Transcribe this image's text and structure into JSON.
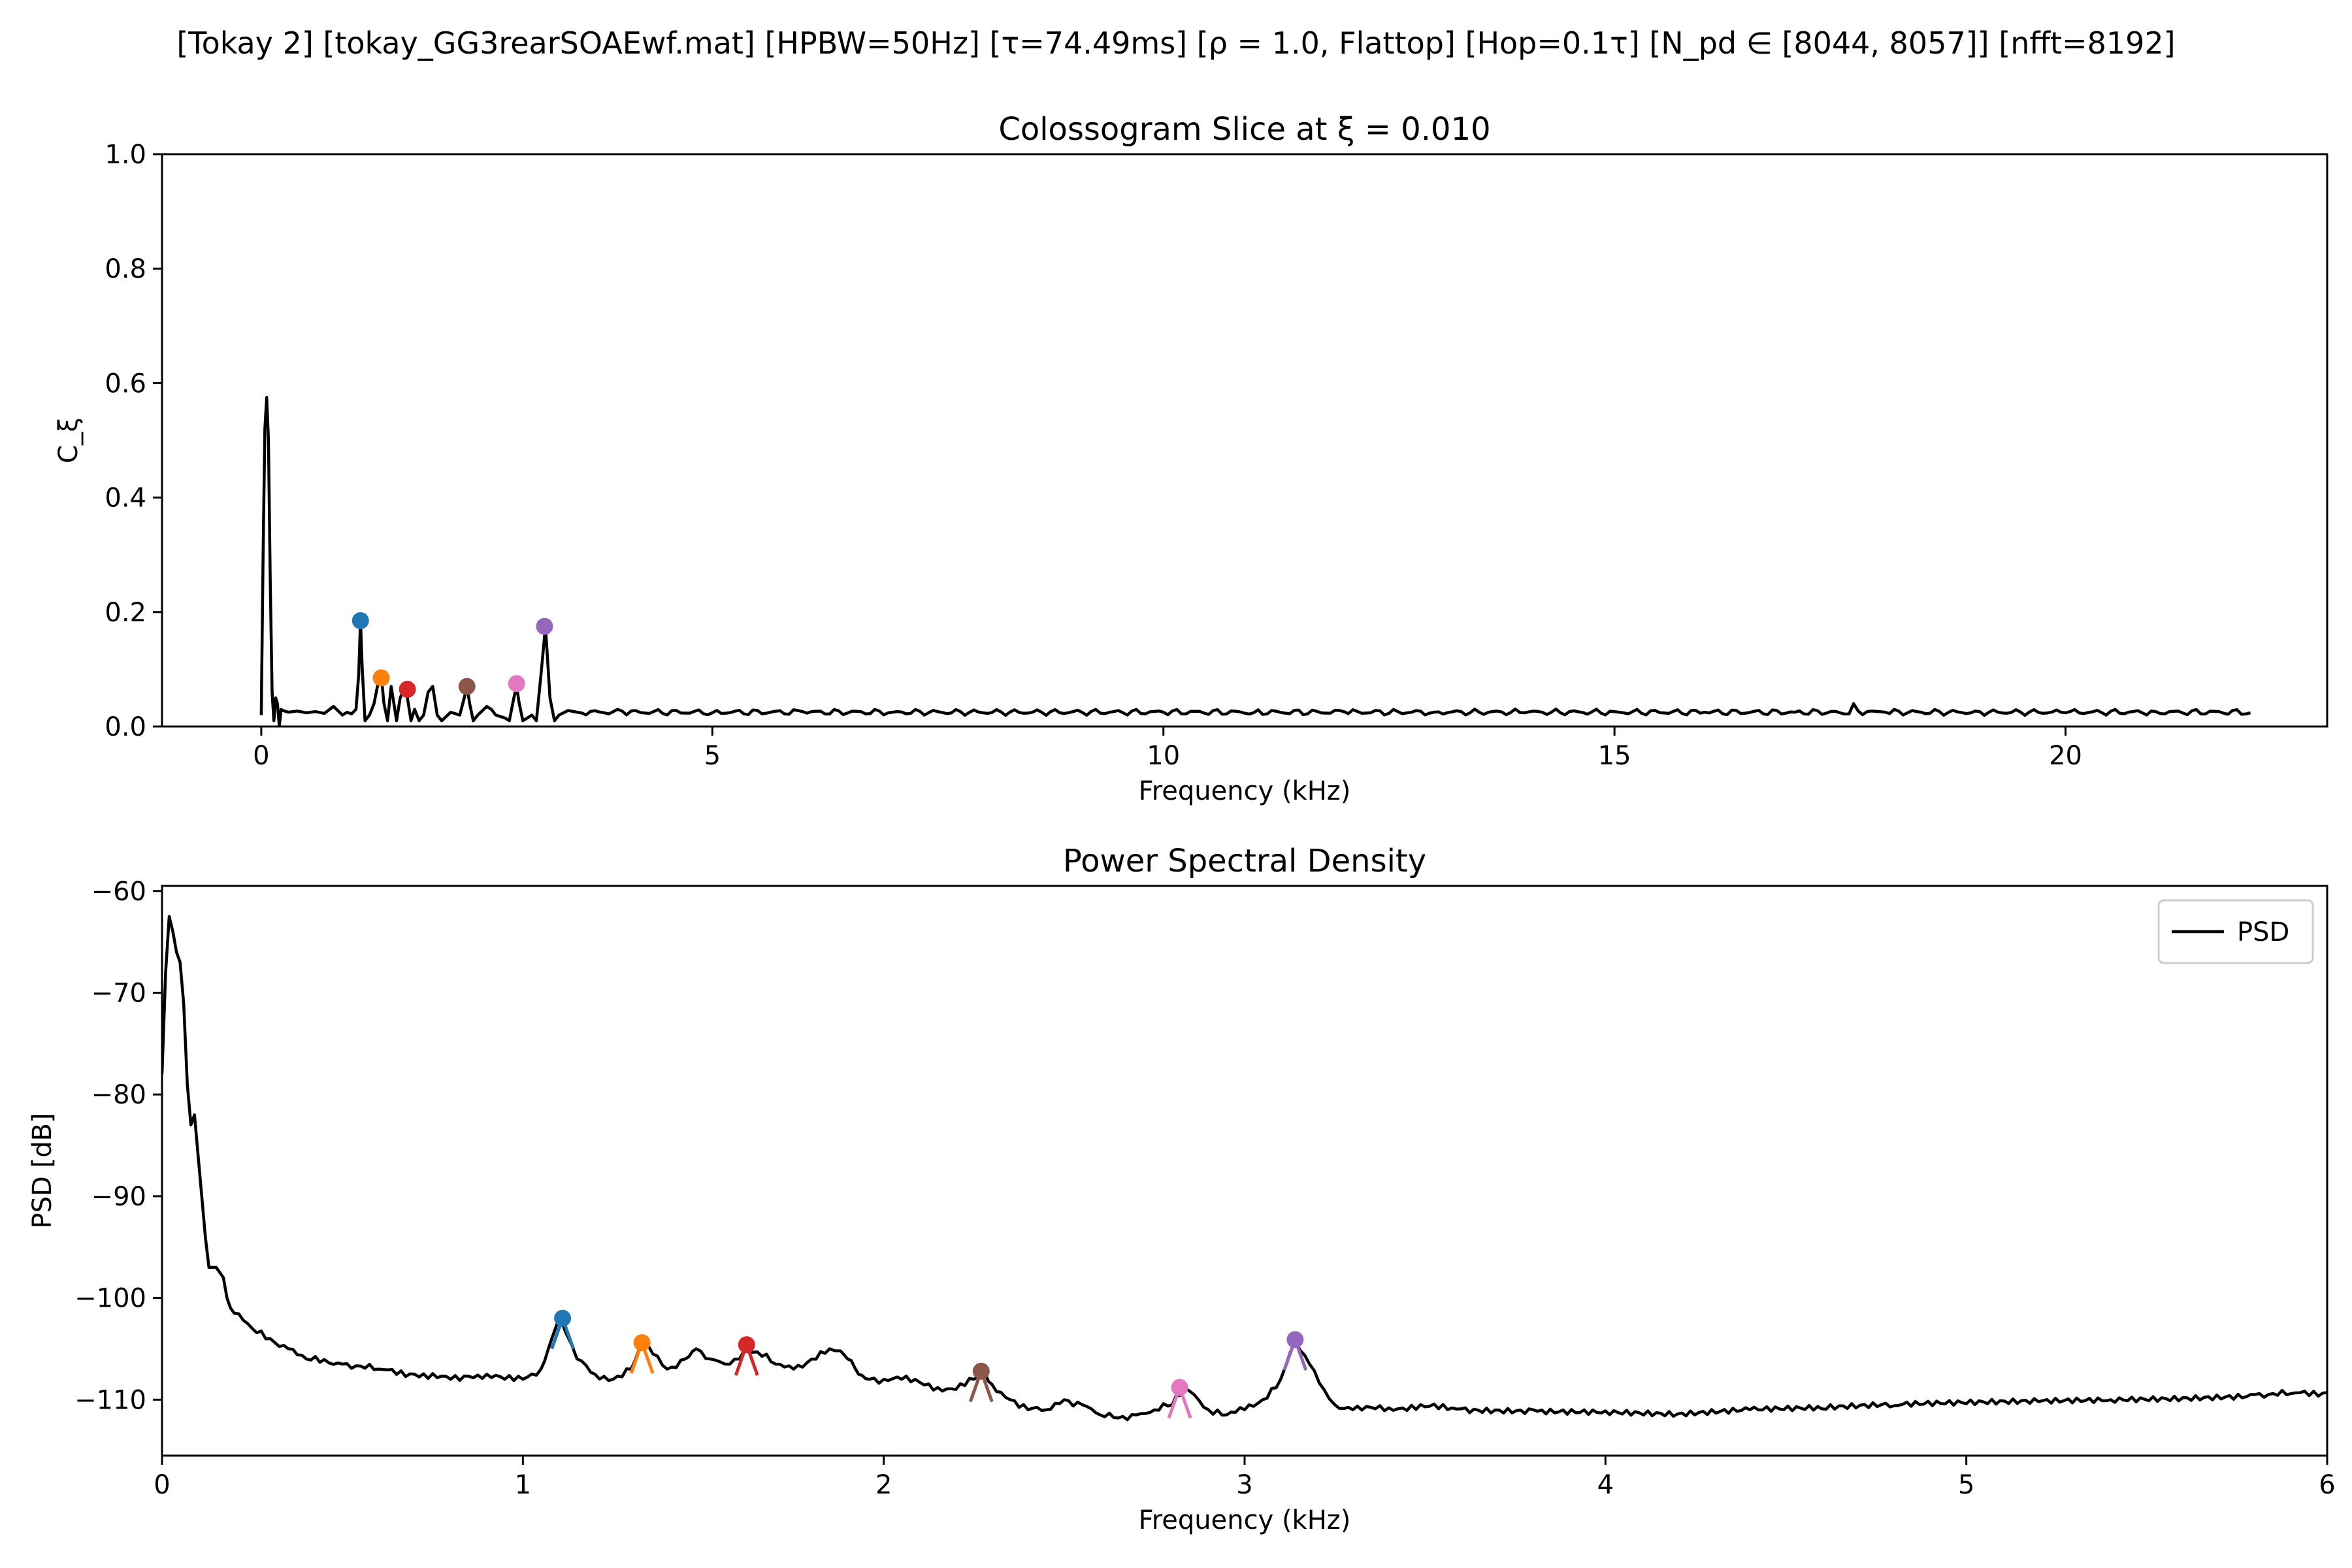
{
  "figure": {
    "suptitle": "[Tokay 2]   [tokay_GG3rearSOAEwf.mat]   [HPBW=50Hz]   [τ=74.49ms]   [ρ = 1.0, Flattop]   [Hop=0.1τ]   [N_pd ∈ [8044, 8057]]   [nfft=8192]"
  },
  "chart_data": [
    {
      "type": "line",
      "title": "Colossogram Slice at ξ = 0.010",
      "xlabel": "Frequency (kHz)",
      "ylabel": "C_ξ",
      "xlim": [
        -1.1,
        22.9
      ],
      "ylim": [
        0.0,
        1.0
      ],
      "xticks": [
        0,
        5,
        10,
        15,
        20
      ],
      "yticks": [
        0.0,
        0.2,
        0.4,
        0.6,
        0.8,
        1.0
      ],
      "ytick_labels": [
        "0.0",
        "0.2",
        "0.4",
        "0.6",
        "0.8",
        "1.0"
      ],
      "grid": false,
      "line_color": "#000000",
      "baseline": 0.025,
      "x_end": 22.05,
      "series": [
        {
          "x": [
            0.0,
            0.02,
            0.04,
            0.06,
            0.08,
            0.1,
            0.12,
            0.14,
            0.16,
            0.18,
            0.2,
            0.22,
            0.24,
            0.3,
            0.4,
            0.5,
            0.6,
            0.7,
            0.8,
            0.9,
            0.95,
            1.0,
            1.05,
            1.08,
            1.1,
            1.12,
            1.15,
            1.2,
            1.25,
            1.3,
            1.33,
            1.36,
            1.4,
            1.44,
            1.48,
            1.5,
            1.54,
            1.58,
            1.62,
            1.66,
            1.7,
            1.75,
            1.8,
            1.85,
            1.9,
            1.95,
            2.0,
            2.1,
            2.2,
            2.25,
            2.28,
            2.31,
            2.35,
            2.4,
            2.5,
            2.55,
            2.6,
            2.7,
            2.75,
            2.8,
            2.83,
            2.86,
            2.9,
            2.95,
            3.0,
            3.05,
            3.1,
            3.15,
            3.2,
            3.25,
            3.3,
            3.4,
            3.5,
            4.0,
            5.0,
            6.0,
            7.0,
            8.0,
            9.0,
            10.0,
            11.0,
            12.0,
            13.0,
            14.0,
            15.0,
            16.0,
            17.0,
            17.5,
            17.65,
            17.8,
            18.0,
            19.0,
            20.0,
            21.0,
            22.05
          ],
          "y": [
            0.02,
            0.3,
            0.52,
            0.575,
            0.5,
            0.25,
            0.06,
            0.01,
            0.05,
            0.04,
            0.0,
            0.03,
            0.028,
            0.025,
            0.027,
            0.024,
            0.026,
            0.023,
            0.035,
            0.02,
            0.025,
            0.022,
            0.03,
            0.09,
            0.185,
            0.1,
            0.01,
            0.02,
            0.04,
            0.08,
            0.09,
            0.04,
            0.01,
            0.07,
            0.03,
            0.01,
            0.05,
            0.065,
            0.05,
            0.01,
            0.03,
            0.01,
            0.02,
            0.06,
            0.07,
            0.02,
            0.01,
            0.025,
            0.02,
            0.05,
            0.07,
            0.04,
            0.01,
            0.02,
            0.035,
            0.03,
            0.02,
            0.015,
            0.01,
            0.05,
            0.07,
            0.04,
            0.01,
            0.015,
            0.02,
            0.01,
            0.09,
            0.175,
            0.05,
            0.01,
            0.02,
            0.028,
            0.025,
            0.027,
            0.024,
            0.026,
            0.025,
            0.024,
            0.026,
            0.025,
            0.024,
            0.026,
            0.025,
            0.024,
            0.026,
            0.025,
            0.025,
            0.024,
            0.04,
            0.026,
            0.025,
            0.027,
            0.024,
            0.026,
            0.024
          ]
        }
      ],
      "markers": [
        {
          "x": 1.1,
          "y": 0.185,
          "color": "#1f77b4"
        },
        {
          "x": 1.33,
          "y": 0.085,
          "color": "#ff7f0e"
        },
        {
          "x": 1.62,
          "y": 0.065,
          "color": "#d62728"
        },
        {
          "x": 2.28,
          "y": 0.07,
          "color": "#8c564b"
        },
        {
          "x": 2.83,
          "y": 0.075,
          "color": "#e377c2"
        },
        {
          "x": 3.14,
          "y": 0.175,
          "color": "#9467bd"
        }
      ]
    },
    {
      "type": "line",
      "title": "Power Spectral Density",
      "xlabel": "Frequency (kHz)",
      "ylabel": "PSD [dB]",
      "xlim": [
        0,
        6
      ],
      "ylim": [
        -115.5,
        -59.5
      ],
      "xticks": [
        0,
        1,
        2,
        3,
        4,
        5,
        6
      ],
      "yticks": [
        -60,
        -70,
        -80,
        -90,
        -100,
        -110
      ],
      "ytick_labels": [
        "−60",
        "−70",
        "−80",
        "−90",
        "−100",
        "−110"
      ],
      "grid": false,
      "legend": {
        "position": "top-right",
        "entries": [
          "PSD"
        ]
      },
      "series": [
        {
          "name": "PSD",
          "x": [
            0.0,
            0.01,
            0.02,
            0.03,
            0.04,
            0.05,
            0.06,
            0.07,
            0.08,
            0.09,
            0.1,
            0.11,
            0.12,
            0.13,
            0.15,
            0.17,
            0.18,
            0.19,
            0.2,
            0.25,
            0.3,
            0.35,
            0.4,
            0.5,
            0.6,
            0.7,
            0.8,
            0.85,
            0.9,
            0.95,
            1.0,
            1.05,
            1.08,
            1.1,
            1.12,
            1.15,
            1.2,
            1.25,
            1.3,
            1.33,
            1.36,
            1.4,
            1.45,
            1.48,
            1.52,
            1.56,
            1.6,
            1.62,
            1.65,
            1.7,
            1.75,
            1.8,
            1.85,
            1.88,
            1.9,
            1.93,
            1.96,
            2.0,
            2.05,
            2.1,
            2.15,
            2.2,
            2.25,
            2.28,
            2.3,
            2.35,
            2.4,
            2.45,
            2.5,
            2.55,
            2.6,
            2.65,
            2.7,
            2.75,
            2.8,
            2.83,
            2.86,
            2.9,
            2.95,
            3.0,
            3.05,
            3.1,
            3.14,
            3.18,
            3.22,
            3.25,
            3.3,
            3.4,
            3.5,
            3.6,
            3.8,
            4.0,
            4.2,
            4.4,
            4.6,
            4.8,
            5.0,
            5.2,
            5.4,
            5.6,
            5.8,
            5.9,
            6.0
          ],
          "y": [
            -78,
            -68,
            -62.5,
            -64,
            -66,
            -67,
            -71,
            -79,
            -83,
            -82,
            -86,
            -90,
            -94,
            -97,
            -97,
            -98,
            -100,
            -101,
            -101.5,
            -103,
            -104,
            -105,
            -106,
            -106.5,
            -107,
            -107.5,
            -108,
            -107.7,
            -107.5,
            -108,
            -108,
            -107,
            -104,
            -102,
            -103.5,
            -106,
            -107.5,
            -108,
            -107,
            -104.5,
            -105.5,
            -107,
            -106,
            -105,
            -106,
            -106.5,
            -106,
            -104.8,
            -105.3,
            -106.5,
            -107,
            -106,
            -105,
            -105.2,
            -106,
            -107.5,
            -108,
            -108,
            -108,
            -108.3,
            -108.8,
            -109,
            -108,
            -107.3,
            -108.5,
            -110,
            -111,
            -111,
            -110,
            -110.5,
            -111.5,
            -111.8,
            -111.5,
            -111,
            -110.5,
            -108.8,
            -109.5,
            -111,
            -111.5,
            -111,
            -110,
            -108,
            -104.2,
            -106.5,
            -109,
            -110.5,
            -111,
            -110.8,
            -110.7,
            -110.9,
            -111,
            -111.1,
            -111.4,
            -111,
            -110.9,
            -110.6,
            -110.4,
            -110.2,
            -110,
            -109.8,
            -109.5,
            -109.4,
            -109.3
          ]
        }
      ],
      "markers": [
        {
          "x": 1.11,
          "y": -102,
          "color": "#1f77b4"
        },
        {
          "x": 1.33,
          "y": -104.4,
          "color": "#ff7f0e"
        },
        {
          "x": 1.62,
          "y": -104.6,
          "color": "#d62728"
        },
        {
          "x": 2.27,
          "y": -107.2,
          "color": "#8c564b"
        },
        {
          "x": 2.82,
          "y": -108.8,
          "color": "#e377c2"
        },
        {
          "x": 3.14,
          "y": -104.1,
          "color": "#9467bd"
        }
      ]
    }
  ]
}
